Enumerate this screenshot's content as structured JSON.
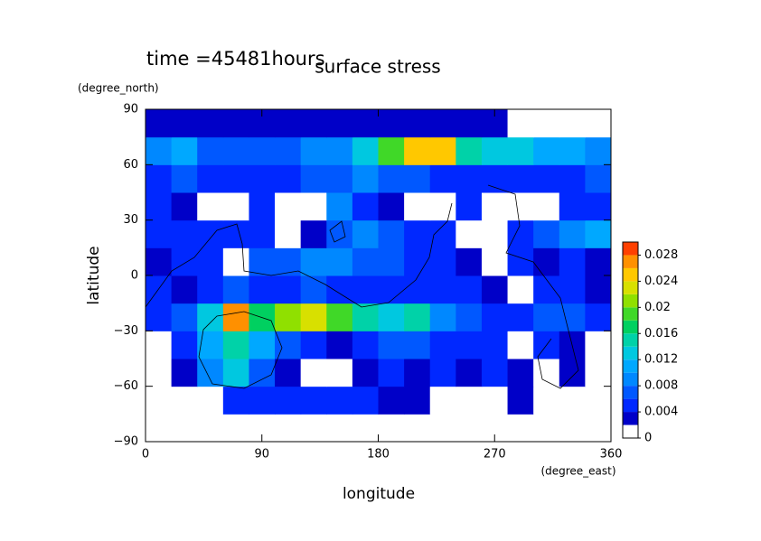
{
  "chart_data": {
    "type": "contour",
    "title": "surface stress",
    "subtitle": "time =45481hours",
    "xlabel": "longitude",
    "xunit": "(degree_east)",
    "ylabel": "latitude",
    "yunit": "(degree_north)",
    "xlim": [
      0,
      360
    ],
    "ylim": [
      -90,
      90
    ],
    "xticks": [
      0,
      90,
      180,
      270,
      360
    ],
    "yticks": [
      {
        "value": -90,
        "label": "−90"
      },
      {
        "value": -60,
        "label": "−60"
      },
      {
        "value": -30,
        "label": "−30"
      },
      0,
      30,
      60,
      90
    ],
    "x": [
      10,
      30,
      50,
      70,
      90,
      110,
      130,
      150,
      170,
      190,
      210,
      230,
      250,
      270,
      290,
      310,
      330,
      350
    ],
    "y": [
      -82.5,
      -67.5,
      -52.5,
      -37.5,
      -22.5,
      -7.5,
      7.5,
      22.5,
      37.5,
      52.5,
      67.5,
      82.5
    ],
    "z": [
      [
        0.001,
        0.001,
        0.001,
        0.001,
        0.001,
        0.001,
        0.001,
        0.001,
        0.001,
        0.001,
        0.001,
        0.001,
        0.001,
        0.001,
        0.001,
        0.001,
        0.001,
        0.001
      ],
      [
        0.001,
        0.001,
        0.001,
        0.004,
        0.004,
        0.005,
        0.004,
        0.004,
        0.004,
        0.003,
        0.003,
        0.001,
        0.001,
        0.001,
        0.003,
        0.001,
        0.001,
        0.001
      ],
      [
        0.001,
        0.003,
        0.008,
        0.012,
        0.006,
        0.003,
        0.001,
        0.001,
        0.003,
        0.004,
        0.003,
        0.004,
        0.003,
        0.004,
        0.003,
        0.001,
        0.003,
        0.001
      ],
      [
        0.001,
        0.004,
        0.01,
        0.014,
        0.01,
        0.006,
        0.004,
        0.003,
        0.004,
        0.006,
        0.006,
        0.004,
        0.004,
        0.005,
        0.001,
        0.004,
        0.003,
        0.001
      ],
      [
        0.005,
        0.006,
        0.012,
        0.026,
        0.016,
        0.02,
        0.022,
        0.018,
        0.014,
        0.012,
        0.014,
        0.008,
        0.006,
        0.004,
        0.004,
        0.006,
        0.006,
        0.004
      ],
      [
        0.004,
        0.003,
        0.004,
        0.006,
        0.004,
        0.005,
        0.006,
        0.004,
        0.004,
        0.005,
        0.004,
        0.004,
        0.005,
        0.003,
        0.001,
        0.004,
        0.004,
        0.003
      ],
      [
        0.003,
        0.004,
        0.004,
        0.001,
        0.006,
        0.006,
        0.008,
        0.008,
        0.006,
        0.006,
        0.004,
        0.004,
        0.003,
        0.001,
        0.004,
        0.003,
        0.004,
        0.003
      ],
      [
        0.004,
        0.004,
        0.004,
        0.005,
        0.004,
        0.001,
        0.003,
        0.006,
        0.008,
        0.006,
        0.004,
        0.004,
        0.001,
        0.001,
        0.004,
        0.006,
        0.008,
        0.01
      ],
      [
        0.004,
        0.003,
        0.001,
        0.001,
        0.004,
        0.001,
        0.001,
        0.008,
        0.004,
        0.003,
        0.001,
        0.001,
        0.004,
        0.001,
        0.001,
        0.001,
        0.004,
        0.004
      ],
      [
        0.004,
        0.006,
        0.005,
        0.004,
        0.005,
        0.004,
        0.006,
        0.006,
        0.008,
        0.006,
        0.006,
        0.004,
        0.004,
        0.004,
        0.004,
        0.004,
        0.004,
        0.006
      ],
      [
        0.008,
        0.01,
        0.006,
        0.006,
        0.006,
        0.006,
        0.008,
        0.008,
        0.012,
        0.018,
        0.024,
        0.024,
        0.014,
        0.012,
        0.012,
        0.01,
        0.01,
        0.008
      ],
      [
        0.002,
        0.003,
        0.003,
        0.003,
        0.003,
        0.003,
        0.003,
        0.003,
        0.003,
        0.003,
        0.003,
        0.003,
        0.003,
        0.003,
        0.001,
        0.001,
        0.001,
        0.001
      ]
    ],
    "levels": [
      0,
      0.002,
      0.004,
      0.006,
      0.008,
      0.01,
      0.012,
      0.014,
      0.016,
      0.018,
      0.02,
      0.022,
      0.024,
      0.026,
      0.028,
      0.03
    ],
    "colors": [
      "#ffffff",
      "#0000c8",
      "#0028ff",
      "#0058ff",
      "#0088ff",
      "#00a8ff",
      "#00c8e0",
      "#00d2a8",
      "#00d060",
      "#40d828",
      "#90e000",
      "#d8e000",
      "#ffc800",
      "#ff9000",
      "#ff4000"
    ],
    "cbar_ticks": [
      0,
      0.004,
      0.008,
      0.012,
      0.016,
      0.02,
      0.024,
      0.028
    ]
  }
}
